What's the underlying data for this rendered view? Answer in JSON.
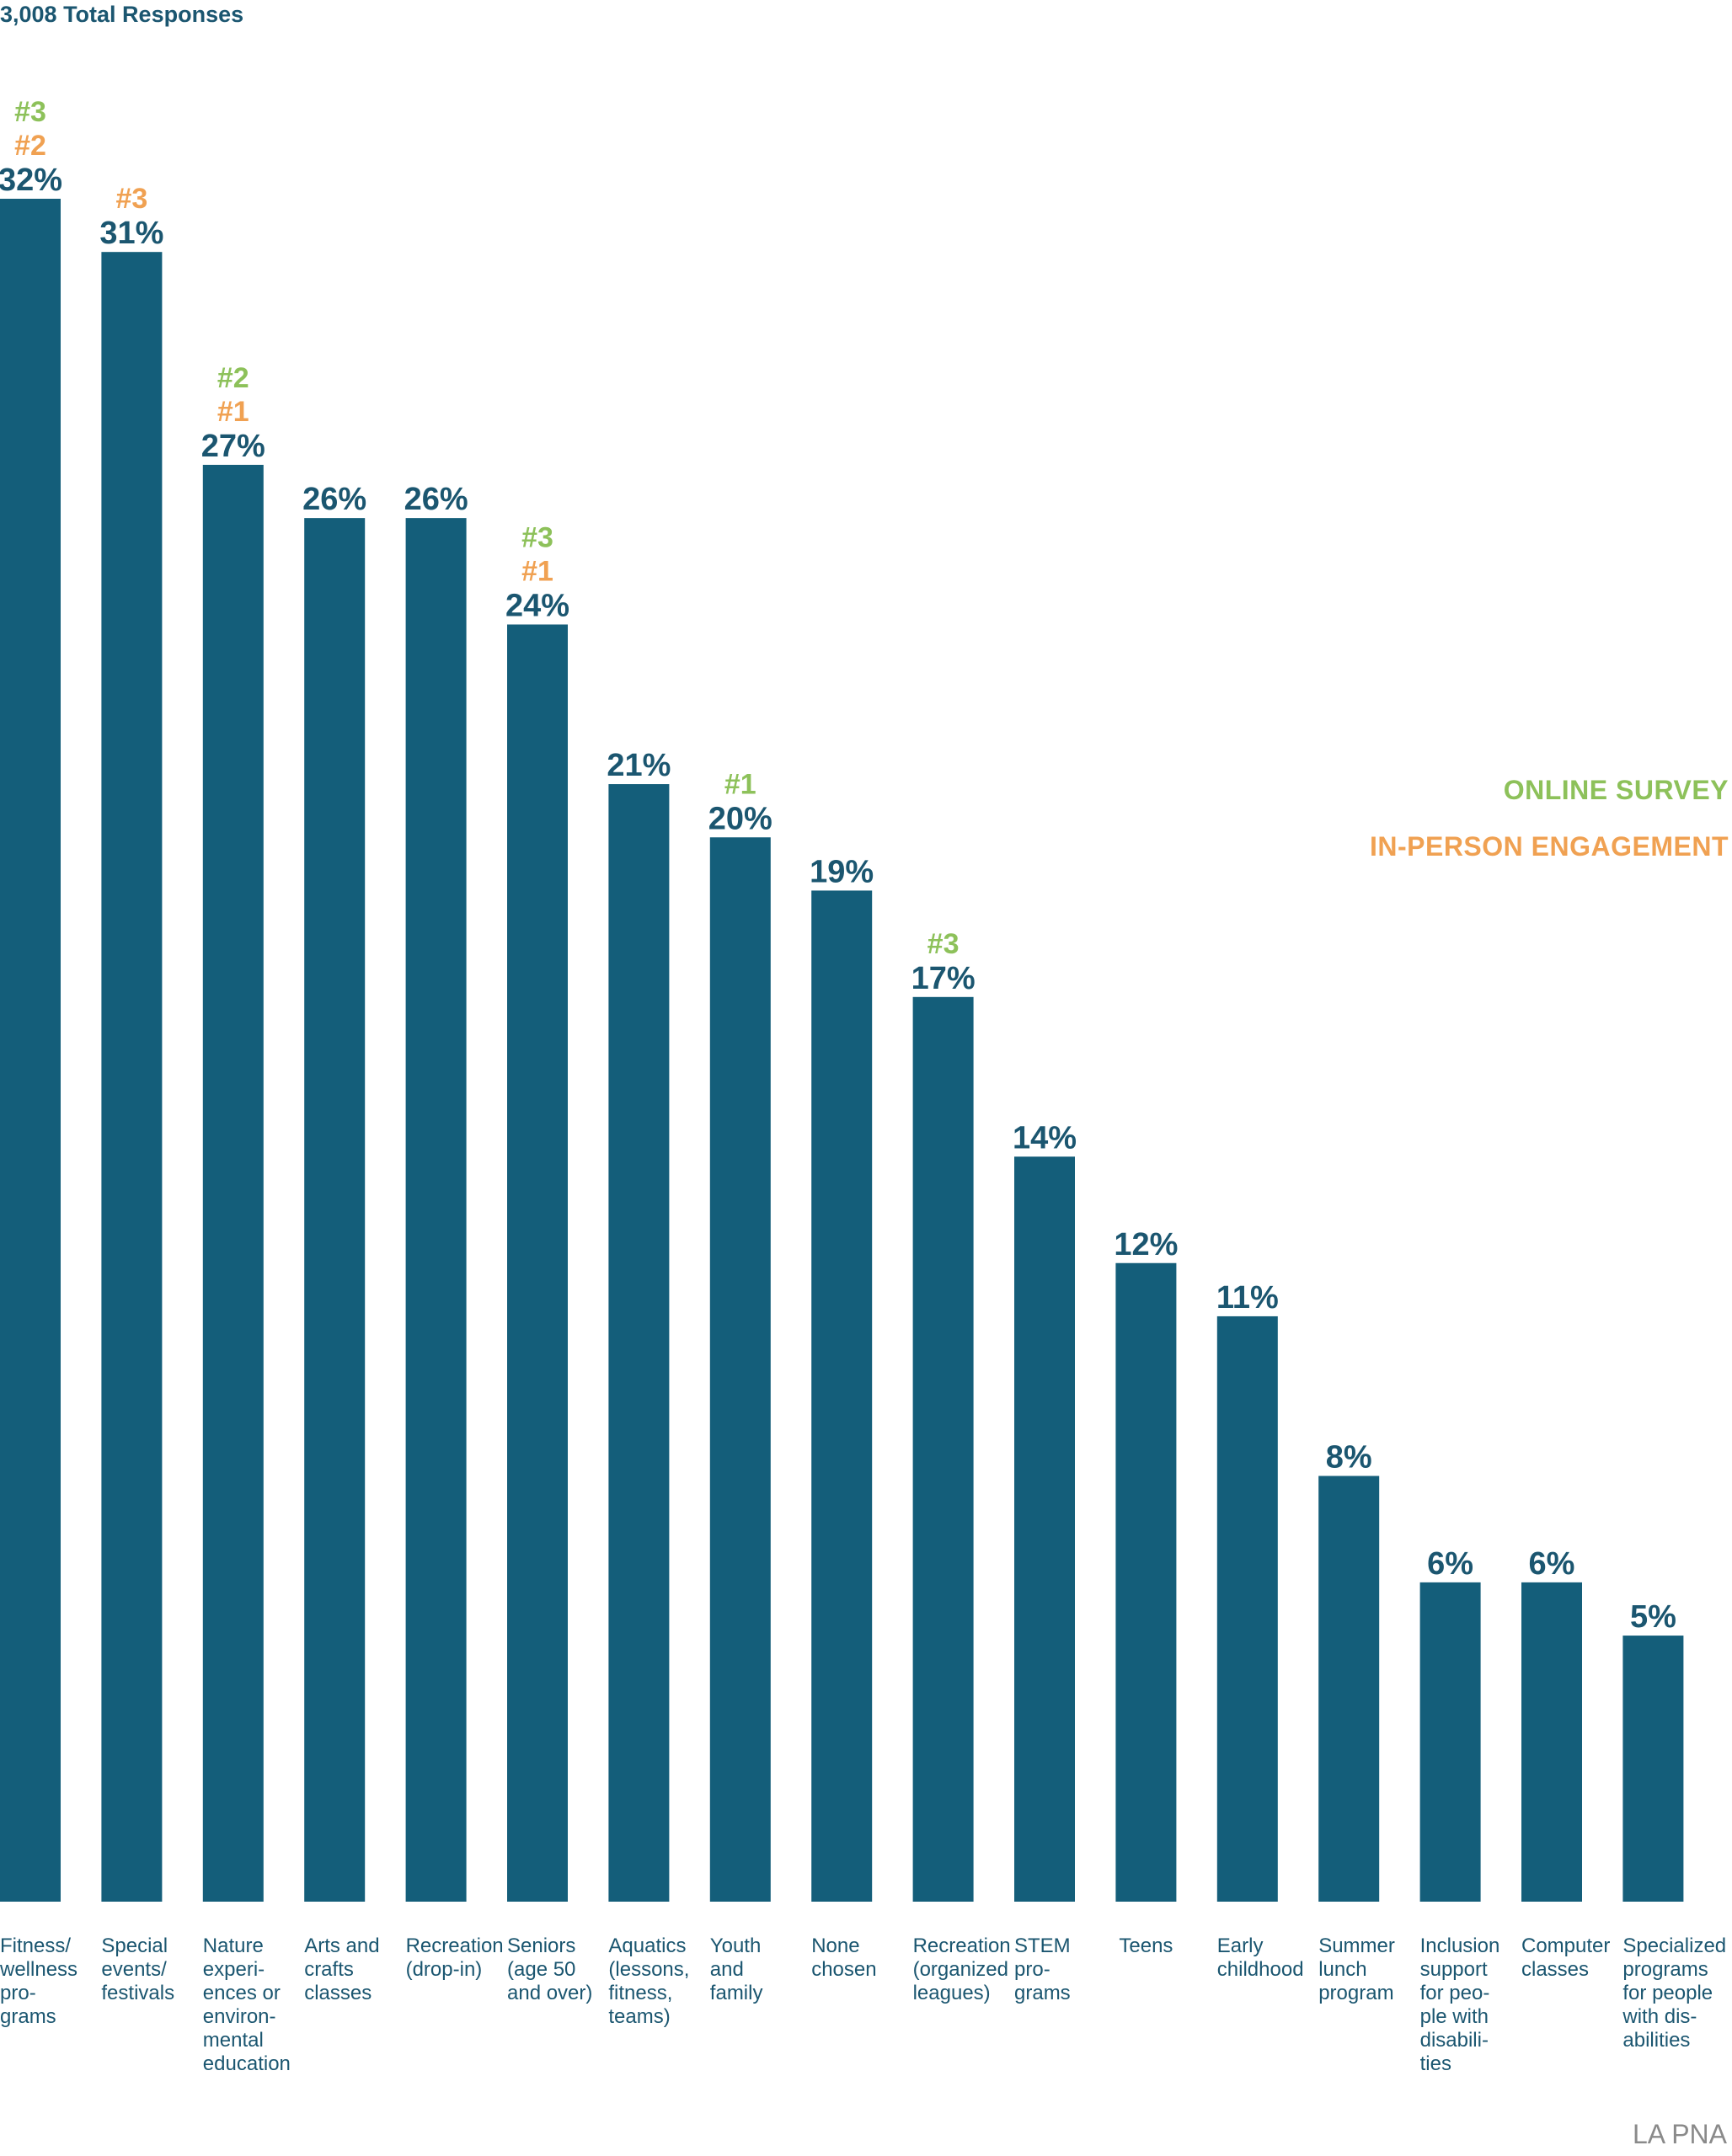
{
  "chart_data": {
    "type": "bar",
    "title": "3,008 Total Responses",
    "ylim": [
      0,
      32
    ],
    "grid": false,
    "legend_placement": "right",
    "legend": [
      {
        "name": "ONLINE SURVEY",
        "color": "#8dc15a"
      },
      {
        "name": "IN-PERSON ENGAGEMENT",
        "color": "#f0a152"
      }
    ],
    "bar_color": "#145e7a",
    "label_color": "#1b5670",
    "categories": [
      {
        "label": [
          "Fitness/",
          "wellness",
          "pro-",
          "grams"
        ]
      },
      {
        "label": [
          "Special",
          "events/",
          "festivals"
        ]
      },
      {
        "label": [
          "Nature",
          "experi-",
          "ences or",
          "environ-",
          "mental",
          "education"
        ]
      },
      {
        "label": [
          "Arts and",
          "crafts",
          "classes"
        ]
      },
      {
        "label": [
          "Recreation",
          "(drop-in)"
        ]
      },
      {
        "label": [
          "Seniors",
          "(age 50",
          "and over)"
        ]
      },
      {
        "label": [
          "Aquatics",
          "(lessons,",
          "fitness,",
          "teams)"
        ]
      },
      {
        "label": [
          "Youth",
          "and",
          "family"
        ]
      },
      {
        "label": [
          "None",
          "chosen"
        ]
      },
      {
        "label": [
          "Recreation",
          "(organized",
          "leagues)"
        ]
      },
      {
        "label": [
          "STEM",
          "pro-",
          "grams"
        ]
      },
      {
        "label": [
          "Teens"
        ],
        "align": "center"
      },
      {
        "label": [
          "Early",
          "childhood"
        ]
      },
      {
        "label": [
          "Summer",
          "lunch",
          "program"
        ]
      },
      {
        "label": [
          "Inclusion",
          "support",
          "for peo-",
          "ple with",
          "disabili-",
          "ties"
        ]
      },
      {
        "label": [
          "Computer",
          "classes"
        ]
      },
      {
        "label": [
          "Specialized",
          "programs",
          "for people",
          "with dis-",
          "abilities"
        ]
      }
    ],
    "values": [
      32,
      31,
      27,
      26,
      26,
      24,
      21,
      20,
      19,
      17,
      14,
      12,
      11,
      8,
      6,
      6,
      5
    ],
    "value_labels": [
      "32%",
      "31%",
      "27%",
      "26%",
      "26%",
      "24%",
      "21%",
      "20%",
      "19%",
      "17%",
      "14%",
      "12%",
      "11%",
      "8%",
      "6%",
      "6%",
      "5%"
    ],
    "rank_annotations": [
      [
        {
          "text": "#3",
          "source": "online"
        },
        {
          "text": "#2",
          "source": "in-person"
        }
      ],
      [
        {
          "text": "#3",
          "source": "in-person"
        }
      ],
      [
        {
          "text": "#2",
          "source": "online"
        },
        {
          "text": "#1",
          "source": "in-person"
        }
      ],
      [],
      [],
      [
        {
          "text": "#3",
          "source": "online"
        },
        {
          "text": "#1",
          "source": "in-person"
        }
      ],
      [],
      [
        {
          "text": "#1",
          "source": "online"
        }
      ],
      [],
      [
        {
          "text": "#3",
          "source": "online"
        }
      ],
      [],
      [],
      [],
      [],
      [],
      [],
      []
    ],
    "source_colors": {
      "online": "#8dc15a",
      "in-person": "#f0a152"
    }
  },
  "credit": "LA PNA"
}
